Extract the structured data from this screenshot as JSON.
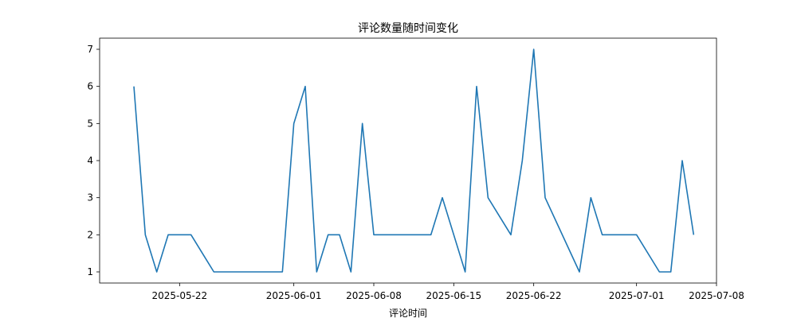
{
  "chart_data": {
    "type": "line",
    "title": "评论数量随时间变化",
    "xlabel": "评论时间",
    "ylabel": "",
    "x": [
      "2025-05-18",
      "2025-05-19",
      "2025-05-20",
      "2025-05-21",
      "2025-05-23",
      "2025-05-25",
      "2025-05-31",
      "2025-06-01",
      "2025-06-02",
      "2025-06-03",
      "2025-06-04",
      "2025-06-05",
      "2025-06-06",
      "2025-06-07",
      "2025-06-08",
      "2025-06-13",
      "2025-06-14",
      "2025-06-16",
      "2025-06-17",
      "2025-06-18",
      "2025-06-20",
      "2025-06-21",
      "2025-06-22",
      "2025-06-23",
      "2025-06-26",
      "2025-06-27",
      "2025-06-28",
      "2025-07-01",
      "2025-07-03",
      "2025-07-04",
      "2025-07-05",
      "2025-07-06"
    ],
    "series": [
      {
        "values": [
          6,
          2,
          1,
          2,
          2,
          1,
          1,
          5,
          6,
          1,
          2,
          2,
          1,
          5,
          2,
          2,
          3,
          1,
          6,
          3,
          2,
          4,
          7,
          3,
          1,
          3,
          2,
          2,
          1,
          1,
          4,
          2
        ],
        "color": "#1f77b4"
      }
    ],
    "xticks": [
      "2025-05-22",
      "2025-06-01",
      "2025-06-08",
      "2025-06-15",
      "2025-06-22",
      "2025-07-01",
      "2025-07-08"
    ],
    "yticks": [
      1,
      2,
      3,
      4,
      5,
      6,
      7
    ],
    "xlim": [
      "2025-05-15",
      "2025-07-08"
    ],
    "ylim": [
      0.7,
      7.3
    ],
    "grid": false,
    "legend": "none"
  }
}
